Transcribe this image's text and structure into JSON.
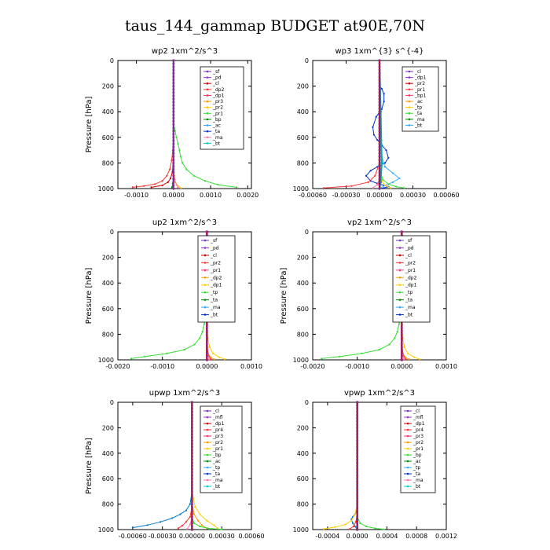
{
  "page": {
    "title": "taus_144_gammap  BUDGET at90E,70N"
  },
  "chart_data": [
    {
      "type": "line",
      "title": "wp2   1xm^2/s^3",
      "ylabel": "Pressure [hPa]",
      "xlim": [
        -0.0015,
        0.0021
      ],
      "ylim": [
        0,
        1000
      ],
      "xticks": [
        -0.001,
        0.0,
        0.001,
        0.002
      ],
      "xticklabels": [
        "-0.0010",
        "0.0000",
        "0.0010",
        "0.0020"
      ],
      "yticks": [
        0,
        200,
        400,
        600,
        800,
        1000
      ],
      "legend": [
        "_sf",
        "_pd",
        "_cl",
        "_dp2",
        "_dp1",
        "_pr3",
        "_pr2",
        "_pr1",
        "_bp",
        "_ac",
        "_ta",
        "_ma",
        "_bt"
      ],
      "series": [
        {
          "name": "_pr1",
          "color": "#33dd33",
          "x": [
            0,
            0,
            1e-05,
            4e-05,
            8e-05,
            0.00012,
            0.00016,
            0.00019,
            0.00024,
            0.00035,
            0.00055,
            0.00085,
            0.0012,
            0.0017
          ],
          "y": [
            0,
            300,
            500,
            550,
            600,
            650,
            700,
            750,
            800,
            850,
            900,
            940,
            970,
            990
          ]
        },
        {
          "name": "_dp1",
          "color": "#ff3333",
          "x": [
            0,
            0,
            -2e-05,
            -5e-05,
            -0.0001,
            -0.00018,
            -0.0003,
            -0.0005,
            -0.0008,
            -0.0011
          ],
          "y": [
            0,
            600,
            700,
            780,
            850,
            900,
            940,
            965,
            980,
            990
          ]
        },
        {
          "name": "_dp2",
          "color": "#cc0000",
          "x": [
            0,
            0,
            -1e-05,
            -3e-05,
            -8e-05,
            -0.00015,
            -0.0003,
            -0.0006
          ],
          "y": [
            0,
            700,
            800,
            870,
            920,
            950,
            975,
            990
          ]
        },
        {
          "name": "_pr2",
          "color": "#ffcc00",
          "x": [
            0,
            0,
            2e-05,
            5e-05,
            0.0001,
            0.0002
          ],
          "y": [
            0,
            800,
            900,
            950,
            975,
            995
          ]
        },
        {
          "name": "_ma",
          "color": "#ff77aa",
          "x": [
            0,
            0,
            3e-05,
            8e-05,
            0.00012
          ],
          "y": [
            0,
            850,
            930,
            970,
            990
          ]
        },
        {
          "name": "_bp",
          "color": "#008800",
          "x": [
            0,
            0,
            -2e-05,
            -4e-05
          ],
          "y": [
            0,
            900,
            960,
            990
          ]
        },
        {
          "name": "_bt",
          "color": "#7733bb",
          "x": [
            0,
            0
          ],
          "y": [
            0,
            1000
          ]
        }
      ]
    },
    {
      "type": "line",
      "title": "wp3   1xm^{3} s^{-4}",
      "ylabel": "",
      "xlim": [
        -0.0006,
        0.0006
      ],
      "ylim": [
        0,
        1000
      ],
      "xticks": [
        -0.0006,
        -0.0003,
        0.0,
        0.0003,
        0.0006
      ],
      "xticklabels": [
        "-0.00060",
        "-0.00030",
        "0.00000",
        "0.00030",
        "0.00060"
      ],
      "yticks": [
        0,
        200,
        400,
        600,
        800,
        1000
      ],
      "legend": [
        "_cl",
        "_dp1",
        "_pr2",
        "_pr1",
        "_bp1",
        "_ac",
        "_tp",
        "_ta",
        "_ma",
        "_bt"
      ],
      "series": [
        {
          "name": "_tp",
          "color": "#0033cc",
          "x": [
            0,
            2e-05,
            4e-05,
            4e-05,
            2e-05,
            -3e-05,
            -6e-05,
            -5e-05,
            -2e-05,
            2e-05,
            6e-05,
            8e-05,
            5e-05,
            -2e-05,
            -8e-05,
            -0.00012,
            -8e-05,
            -2e-05,
            4e-05,
            8e-05,
            4e-05,
            0.0
          ],
          "y": [
            200,
            220,
            260,
            320,
            380,
            440,
            520,
            580,
            620,
            660,
            700,
            760,
            800,
            830,
            860,
            900,
            940,
            960,
            975,
            985,
            995,
            1000
          ]
        },
        {
          "name": "_ac",
          "color": "#33aaff",
          "x": [
            0,
            2e-05,
            5e-05,
            0.00012,
            0.00018,
            0.00012,
            5e-05,
            0.0
          ],
          "y": [
            600,
            750,
            830,
            880,
            920,
            950,
            975,
            1000
          ]
        },
        {
          "name": "_dp1",
          "color": "#ff3333",
          "x": [
            0,
            0,
            -4e-05,
            -0.0001,
            -0.00025,
            -0.0005
          ],
          "y": [
            0,
            800,
            900,
            950,
            980,
            995
          ]
        },
        {
          "name": "_pr1",
          "color": "#33dd33",
          "x": [
            0,
            0,
            3e-05,
            8e-05,
            0.00015,
            0.00022
          ],
          "y": [
            0,
            850,
            930,
            965,
            985,
            995
          ]
        },
        {
          "name": "_pr2",
          "color": "#ffcc00",
          "x": [
            0,
            0,
            2e-05,
            5e-05,
            0.0001
          ],
          "y": [
            0,
            880,
            940,
            975,
            995
          ]
        },
        {
          "name": "_ma",
          "color": "#ff77aa",
          "x": [
            0,
            0,
            -2e-05,
            -6e-05
          ],
          "y": [
            0,
            920,
            970,
            995
          ]
        },
        {
          "name": "_bt",
          "color": "#00aaaa",
          "x": [
            0,
            1e-05,
            2e-05,
            1e-05,
            0.0
          ],
          "y": [
            0,
            400,
            800,
            950,
            1000
          ]
        },
        {
          "name": "_cl",
          "color": "#cc0000",
          "x": [
            0,
            0
          ],
          "y": [
            0,
            1000
          ]
        }
      ]
    },
    {
      "type": "line",
      "title": "up2   1xm^2/s^3",
      "ylabel": "Pressure [hPa]",
      "xlim": [
        -0.002,
        0.001
      ],
      "ylim": [
        0,
        1000
      ],
      "xticks": [
        -0.002,
        -0.001,
        0.0,
        0.001
      ],
      "xticklabels": [
        "-0.0020",
        "-0.0010",
        "0.0000",
        "0.0010"
      ],
      "yticks": [
        0,
        200,
        400,
        600,
        800,
        1000
      ],
      "legend": [
        "_sf",
        "_pd",
        "_cl",
        "_pr2",
        "_pr1",
        "_dp2",
        "_dp1",
        "_tp",
        "_ta",
        "_ma",
        "_bt"
      ],
      "series": [
        {
          "name": "_dp1",
          "color": "#33dd33",
          "x": [
            0,
            0,
            -1e-05,
            -3e-05,
            -6e-05,
            -0.0001,
            -0.00016,
            -0.00028,
            -0.0005,
            -0.0009,
            -0.0014,
            -0.0017
          ],
          "y": [
            0,
            400,
            550,
            650,
            720,
            780,
            830,
            880,
            920,
            950,
            975,
            990
          ]
        },
        {
          "name": "_pr2",
          "color": "#ffcc00",
          "x": [
            0,
            0,
            2e-05,
            6e-05,
            0.00014,
            0.00028,
            0.0004
          ],
          "y": [
            0,
            700,
            830,
            900,
            950,
            980,
            995
          ]
        },
        {
          "name": "_pr1",
          "color": "#ff9900",
          "x": [
            0,
            0,
            1e-05,
            3e-05,
            8e-05,
            0.00016
          ],
          "y": [
            0,
            800,
            900,
            950,
            980,
            995
          ]
        },
        {
          "name": "_dp2",
          "color": "#ff3333",
          "x": [
            0,
            0,
            1e-05,
            4e-05,
            9e-05
          ],
          "y": [
            0,
            850,
            930,
            970,
            995
          ]
        },
        {
          "name": "_ma",
          "color": "#ff77aa",
          "x": [
            0,
            0,
            2e-05,
            5e-05
          ],
          "y": [
            0,
            900,
            960,
            995
          ]
        },
        {
          "name": "_bt",
          "color": "#7733bb",
          "x": [
            0,
            0
          ],
          "y": [
            0,
            1000
          ]
        },
        {
          "name": "_cl",
          "color": "#cc0000",
          "x": [
            0,
            0
          ],
          "y": [
            0,
            1000
          ]
        }
      ]
    },
    {
      "type": "line",
      "title": "vp2   1xm^2/s^3",
      "ylabel": "Pressure [hPa]",
      "xlim": [
        -0.002,
        0.001
      ],
      "ylim": [
        0,
        1000
      ],
      "xticks": [
        -0.002,
        -0.001,
        0.0,
        0.001
      ],
      "xticklabels": [
        "-0.0020",
        "-0.0010",
        "0.0000",
        "0.0010"
      ],
      "yticks": [
        0,
        200,
        400,
        600,
        800,
        1000
      ],
      "legend": [
        "_sf",
        "_pd",
        "_cl",
        "_pr2",
        "_pr1",
        "_dp2",
        "_dp1",
        "_tp",
        "_ta",
        "_ma",
        "_bt"
      ],
      "series": [
        {
          "name": "_dp1",
          "color": "#33dd33",
          "x": [
            0,
            0,
            -1e-05,
            -3e-05,
            -6e-05,
            -0.0001,
            -0.00016,
            -0.00028,
            -0.0005,
            -0.0009,
            -0.0014,
            -0.0018
          ],
          "y": [
            0,
            400,
            550,
            650,
            720,
            780,
            830,
            880,
            920,
            950,
            975,
            990
          ]
        },
        {
          "name": "_pr2",
          "color": "#ffcc00",
          "x": [
            0,
            0,
            2e-05,
            6e-05,
            0.00014,
            0.00028,
            0.0004
          ],
          "y": [
            0,
            700,
            830,
            900,
            950,
            980,
            995
          ]
        },
        {
          "name": "_pr1",
          "color": "#ff9900",
          "x": [
            0,
            0,
            1e-05,
            3e-05,
            8e-05,
            0.00016
          ],
          "y": [
            0,
            800,
            900,
            950,
            980,
            995
          ]
        },
        {
          "name": "_dp2",
          "color": "#ff3333",
          "x": [
            0,
            0,
            1e-05,
            4e-05,
            9e-05
          ],
          "y": [
            0,
            850,
            930,
            970,
            995
          ]
        },
        {
          "name": "_ma",
          "color": "#ff77aa",
          "x": [
            0,
            0,
            2e-05,
            5e-05
          ],
          "y": [
            0,
            900,
            960,
            995
          ]
        },
        {
          "name": "_bt",
          "color": "#7733bb",
          "x": [
            0,
            0
          ],
          "y": [
            0,
            1000
          ]
        },
        {
          "name": "_cl",
          "color": "#cc0000",
          "x": [
            0,
            0
          ],
          "y": [
            0,
            1000
          ]
        }
      ]
    },
    {
      "type": "line",
      "title": "upwp   1xm^2/s^3",
      "ylabel": "Pressure [hPa]",
      "xlim": [
        -0.00075,
        0.0006
      ],
      "ylim": [
        0,
        1000
      ],
      "xticks": [
        -0.0006,
        -0.0003,
        0.0,
        0.0003,
        0.0006
      ],
      "xticklabels": [
        "-0.00060",
        "-0.00030",
        "0.00000",
        "0.00030",
        "0.00060"
      ],
      "yticks": [
        0,
        200,
        400,
        600,
        800,
        1000
      ],
      "legend": [
        "_cl",
        "_mfl",
        "_dp1",
        "_pr4",
        "_pr3",
        "_pr2",
        "_pr1",
        "_bp",
        "_ac",
        "_tp",
        "_ta",
        "_ma",
        "_bt"
      ],
      "series": [
        {
          "name": "_ac",
          "color": "#0077cc",
          "x": [
            0,
            0,
            -2e-05,
            -6e-05,
            -0.00012,
            -0.0002,
            -0.00032,
            -0.00045,
            -0.0006
          ],
          "y": [
            0,
            700,
            800,
            850,
            880,
            910,
            940,
            965,
            985
          ]
        },
        {
          "name": "_pr1",
          "color": "#ffcc00",
          "x": [
            0,
            0,
            3e-05,
            8e-05,
            0.00015,
            0.00022,
            0.00026
          ],
          "y": [
            0,
            700,
            820,
            880,
            930,
            965,
            990
          ]
        },
        {
          "name": "_pr2",
          "color": "#ff9900",
          "x": [
            0,
            0,
            2e-05,
            6e-05,
            0.0001,
            0.00015
          ],
          "y": [
            0,
            800,
            880,
            930,
            965,
            990
          ]
        },
        {
          "name": "_dp1",
          "color": "#ff3333",
          "x": [
            0,
            0,
            -2e-05,
            -6e-05,
            -0.0001,
            -0.00014
          ],
          "y": [
            0,
            820,
            900,
            940,
            970,
            990
          ]
        },
        {
          "name": "_bp",
          "color": "#33dd33",
          "x": [
            0,
            0,
            2e-05,
            8e-05,
            0.00016,
            0.0003
          ],
          "y": [
            0,
            900,
            950,
            975,
            990,
            998
          ]
        },
        {
          "name": "_ma",
          "color": "#ff77aa",
          "x": [
            0,
            0,
            -2e-05,
            -5e-05
          ],
          "y": [
            0,
            900,
            960,
            995
          ]
        },
        {
          "name": "_bt",
          "color": "#7733bb",
          "x": [
            0,
            0
          ],
          "y": [
            0,
            1000
          ]
        },
        {
          "name": "_cl",
          "color": "#cc0000",
          "x": [
            0,
            0
          ],
          "y": [
            0,
            1000
          ]
        }
      ]
    },
    {
      "type": "line",
      "title": "vpwp   1xm^2/s^3",
      "ylabel": "",
      "xlim": [
        -0.0006,
        0.0012
      ],
      "ylim": [
        0,
        1000
      ],
      "xticks": [
        -0.0004,
        0.0,
        0.0004,
        0.0008,
        0.0012
      ],
      "xticklabels": [
        "-0.0004",
        "0.0000",
        "0.0004",
        "0.0008",
        "0.0012"
      ],
      "yticks": [
        0,
        200,
        400,
        600,
        800,
        1000
      ],
      "legend": [
        "_cl",
        "_mfl",
        "_dp1",
        "_pr4",
        "_pr3",
        "_pr2",
        "_pr1",
        "_bp",
        "_ac",
        "_tp",
        "_ta",
        "_ma",
        "_bt"
      ],
      "series": [
        {
          "name": "_ac",
          "color": "#0077cc",
          "x": [
            0,
            0,
            -1e-05,
            -3e-05,
            -6e-05,
            -8e-05,
            -6e-05,
            -3e-05,
            0.0
          ],
          "y": [
            0,
            800,
            850,
            880,
            900,
            920,
            950,
            975,
            1000
          ]
        },
        {
          "name": "_pr1",
          "color": "#ffcc00",
          "x": [
            0,
            0,
            -3e-05,
            -8e-05,
            -0.00016,
            -0.0003,
            -0.00045
          ],
          "y": [
            0,
            800,
            880,
            930,
            960,
            980,
            995
          ]
        },
        {
          "name": "_bp",
          "color": "#33dd33",
          "x": [
            0,
            0,
            4e-05,
            0.00012,
            0.00024,
            0.00036
          ],
          "y": [
            0,
            900,
            950,
            975,
            990,
            998
          ]
        },
        {
          "name": "_dp1",
          "color": "#ff3333",
          "x": [
            0,
            0,
            -2e-05,
            -5e-05,
            -0.0001
          ],
          "y": [
            0,
            880,
            940,
            975,
            995
          ]
        },
        {
          "name": "_bt",
          "color": "#7733bb",
          "x": [
            0,
            0
          ],
          "y": [
            0,
            1000
          ]
        },
        {
          "name": "_cl",
          "color": "#cc0000",
          "x": [
            0,
            0
          ],
          "y": [
            0,
            1000
          ]
        }
      ]
    }
  ]
}
